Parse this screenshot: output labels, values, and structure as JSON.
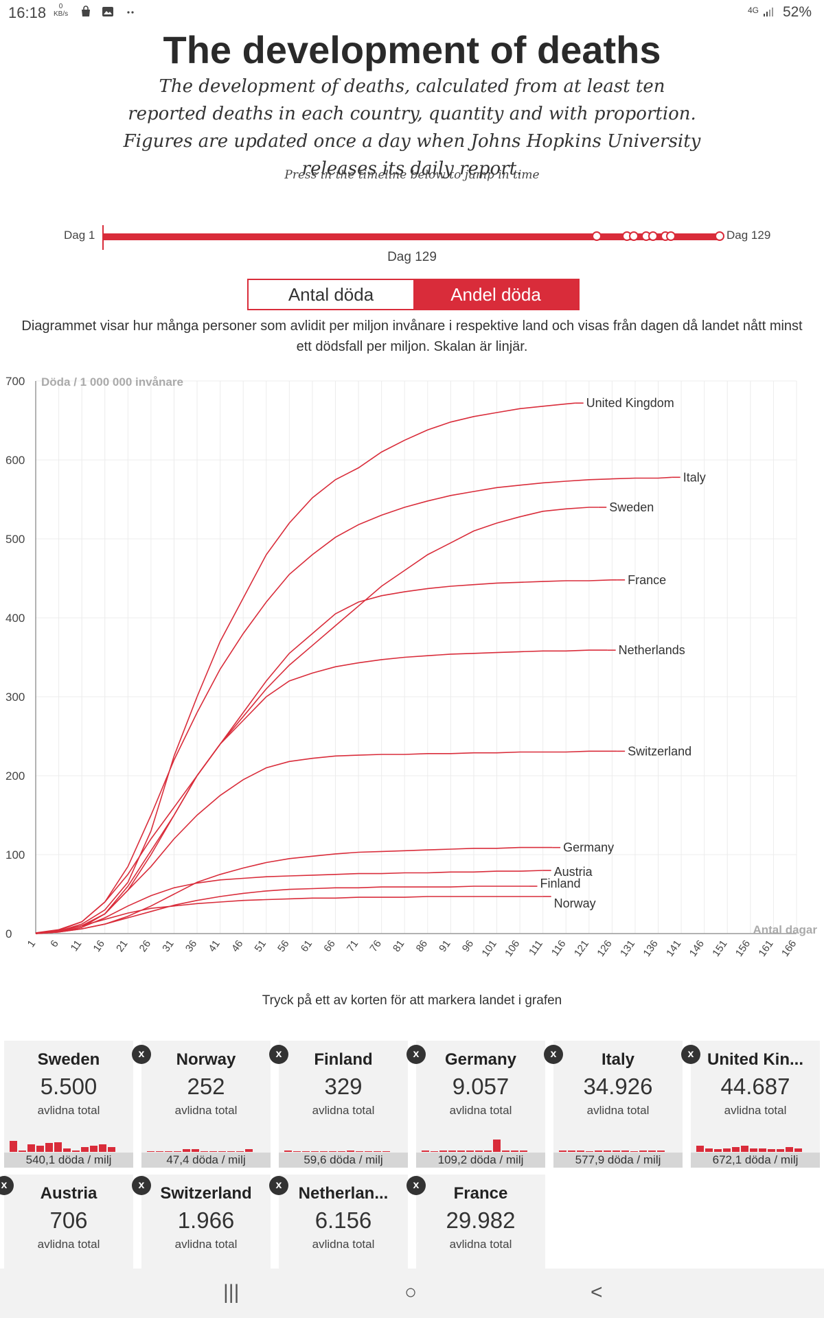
{
  "status_bar": {
    "time": "16:18",
    "kbs_value": "0",
    "kbs_unit": "KB/s",
    "signal": "4G",
    "battery": "52%"
  },
  "header": {
    "title": "The development of deaths",
    "subtitle": "The development of deaths, calculated from at least ten reported deaths in each country, quantity and with proportion. Figures are updated once a day when Johns Hopkins University releases its daily report.",
    "hint": "Press in the timeline below to jump in time"
  },
  "timeline": {
    "start_label": "Dag 1",
    "end_label": "Dag 129",
    "current_label": "Dag 129",
    "current_day": 129,
    "max_day": 129
  },
  "toggle": {
    "option_count": "Antal döda",
    "option_share": "Andel döda",
    "active": "Andel döda"
  },
  "description": "Diagrammet visar hur många personer som avlidit per miljon invånare i respektive land och visas från dagen då landet nått minst ett dödsfall per miljon. Skalan är linjär.",
  "chart_data": {
    "type": "line",
    "ylabel": "Döda / 1 000 000 invånare",
    "xlabel": "Antal dagar",
    "ylim": [
      0,
      700
    ],
    "xlim": [
      1,
      166
    ],
    "yticks": [
      0,
      100,
      200,
      300,
      400,
      500,
      600,
      700
    ],
    "xticks": [
      1,
      6,
      11,
      16,
      21,
      26,
      31,
      36,
      41,
      46,
      51,
      56,
      61,
      66,
      71,
      76,
      81,
      86,
      91,
      96,
      101,
      106,
      111,
      116,
      121,
      126,
      131,
      136,
      141,
      146,
      151,
      156,
      161,
      166
    ],
    "grid": true,
    "series": [
      {
        "name": "United Kingdom",
        "x": [
          1,
          6,
          11,
          16,
          21,
          26,
          31,
          36,
          41,
          46,
          51,
          56,
          61,
          66,
          71,
          76,
          81,
          86,
          91,
          96,
          101,
          106,
          111,
          116,
          118
        ],
        "y": [
          0,
          3,
          12,
          30,
          65,
          130,
          225,
          300,
          370,
          425,
          480,
          520,
          552,
          575,
          590,
          610,
          625,
          638,
          648,
          655,
          660,
          665,
          668,
          671,
          672
        ]
      },
      {
        "name": "Italy",
        "x": [
          1,
          6,
          11,
          16,
          21,
          26,
          31,
          36,
          41,
          46,
          51,
          56,
          61,
          66,
          71,
          76,
          81,
          86,
          91,
          96,
          101,
          106,
          111,
          116,
          121,
          126,
          131,
          136,
          139
        ],
        "y": [
          1,
          5,
          15,
          40,
          85,
          150,
          220,
          280,
          335,
          380,
          420,
          455,
          480,
          502,
          518,
          530,
          540,
          548,
          555,
          560,
          565,
          568,
          571,
          573,
          575,
          576,
          577,
          577,
          578
        ]
      },
      {
        "name": "Sweden",
        "x": [
          1,
          6,
          11,
          16,
          21,
          26,
          31,
          36,
          41,
          46,
          51,
          56,
          61,
          66,
          71,
          76,
          81,
          86,
          91,
          96,
          101,
          106,
          111,
          116,
          121,
          123
        ],
        "y": [
          0,
          4,
          15,
          40,
          75,
          120,
          160,
          200,
          240,
          275,
          310,
          340,
          365,
          390,
          415,
          440,
          460,
          480,
          495,
          510,
          520,
          528,
          535,
          538,
          540,
          540
        ]
      },
      {
        "name": "France",
        "x": [
          1,
          6,
          11,
          16,
          21,
          26,
          31,
          36,
          41,
          46,
          51,
          56,
          61,
          66,
          71,
          76,
          81,
          86,
          91,
          96,
          101,
          106,
          111,
          116,
          121,
          126,
          127
        ],
        "y": [
          0,
          3,
          10,
          25,
          55,
          100,
          150,
          200,
          240,
          280,
          320,
          355,
          380,
          405,
          420,
          428,
          433,
          437,
          440,
          442,
          444,
          445,
          446,
          447,
          447,
          448,
          448
        ]
      },
      {
        "name": "Netherlands",
        "x": [
          1,
          6,
          11,
          16,
          21,
          26,
          31,
          36,
          41,
          46,
          51,
          56,
          61,
          66,
          71,
          76,
          81,
          86,
          91,
          96,
          101,
          106,
          111,
          116,
          121,
          125
        ],
        "y": [
          0,
          2,
          8,
          25,
          60,
          105,
          150,
          200,
          240,
          270,
          300,
          320,
          330,
          338,
          343,
          347,
          350,
          352,
          354,
          355,
          356,
          357,
          358,
          358,
          359,
          359
        ]
      },
      {
        "name": "Switzerland",
        "x": [
          1,
          6,
          11,
          16,
          21,
          26,
          31,
          36,
          41,
          46,
          51,
          56,
          61,
          66,
          71,
          76,
          81,
          86,
          91,
          96,
          101,
          106,
          111,
          116,
          121,
          127
        ],
        "y": [
          0,
          3,
          10,
          25,
          55,
          85,
          120,
          150,
          175,
          195,
          210,
          218,
          222,
          225,
          226,
          227,
          227,
          228,
          228,
          229,
          229,
          230,
          230,
          230,
          231,
          231
        ]
      },
      {
        "name": "Germany",
        "x": [
          1,
          6,
          11,
          16,
          21,
          26,
          31,
          36,
          41,
          46,
          51,
          56,
          61,
          66,
          71,
          76,
          81,
          86,
          91,
          96,
          101,
          106,
          111,
          113
        ],
        "y": [
          0,
          2,
          6,
          12,
          22,
          35,
          50,
          65,
          75,
          83,
          90,
          95,
          98,
          101,
          103,
          104,
          105,
          106,
          107,
          108,
          108,
          109,
          109,
          109
        ]
      },
      {
        "name": "Austria",
        "x": [
          1,
          6,
          11,
          16,
          21,
          26,
          31,
          36,
          41,
          46,
          51,
          56,
          61,
          66,
          71,
          76,
          81,
          86,
          91,
          96,
          101,
          106,
          111
        ],
        "y": [
          0,
          2,
          8,
          20,
          35,
          48,
          58,
          64,
          68,
          70,
          72,
          73,
          74,
          75,
          76,
          76,
          77,
          77,
          78,
          78,
          79,
          79,
          80
        ]
      },
      {
        "name": "Finland",
        "x": [
          1,
          6,
          11,
          16,
          21,
          26,
          31,
          36,
          41,
          46,
          51,
          56,
          61,
          66,
          71,
          76,
          81,
          86,
          91,
          96,
          101,
          106,
          108
        ],
        "y": [
          0,
          2,
          6,
          12,
          20,
          28,
          36,
          42,
          47,
          51,
          54,
          56,
          57,
          58,
          58,
          59,
          59,
          59,
          59,
          60,
          60,
          60,
          60
        ]
      },
      {
        "name": "Norway",
        "x": [
          1,
          6,
          11,
          16,
          21,
          26,
          31,
          36,
          41,
          46,
          51,
          56,
          61,
          66,
          71,
          76,
          81,
          86,
          91,
          96,
          101,
          106,
          111
        ],
        "y": [
          0,
          3,
          10,
          18,
          26,
          32,
          35,
          38,
          40,
          42,
          43,
          44,
          45,
          45,
          46,
          46,
          46,
          47,
          47,
          47,
          47,
          47,
          47
        ]
      }
    ]
  },
  "card_hint": "Tryck på ett av korten för att markera landet i grafen",
  "cards": [
    {
      "name": "Sweden",
      "total": "5.500",
      "total_label": "avlidna total",
      "per_million": "540,1 döda / milj",
      "bars": [
        0.9,
        0.1,
        0.6,
        0.5,
        0.7,
        0.8,
        0.3,
        0.1,
        0.4,
        0.5,
        0.6,
        0.4
      ]
    },
    {
      "name": "Norway",
      "total": "252",
      "total_label": "avlidna total",
      "per_million": "47,4 döda / milj",
      "bars": [
        0,
        0,
        0,
        0,
        0.2,
        0.2,
        0,
        0,
        0,
        0,
        0,
        0.2
      ]
    },
    {
      "name": "Finland",
      "total": "329",
      "total_label": "avlidna total",
      "per_million": "59,6 döda / milj",
      "bars": [
        0.1,
        0,
        0,
        0,
        0,
        0,
        0,
        0.1,
        0,
        0,
        0,
        0
      ]
    },
    {
      "name": "Germany",
      "total": "9.057",
      "total_label": "avlidna total",
      "per_million": "109,2 döda / milj",
      "bars": [
        0.1,
        0,
        0.1,
        0.1,
        0.1,
        0.1,
        0.1,
        0.1,
        1.0,
        0.1,
        0.1,
        0.1
      ]
    },
    {
      "name": "Italy",
      "total": "34.926",
      "total_label": "avlidna total",
      "per_million": "577,9 döda / milj",
      "bars": [
        0.1,
        0.1,
        0.1,
        0,
        0.1,
        0.1,
        0.1,
        0.1,
        0,
        0.1,
        0.1,
        0.1
      ]
    },
    {
      "name": "United Kin...",
      "total": "44.687",
      "total_label": "avlidna total",
      "per_million": "672,1 döda / milj",
      "bars": [
        0.5,
        0.3,
        0.2,
        0.3,
        0.4,
        0.5,
        0.3,
        0.3,
        0.2,
        0.2,
        0.4,
        0.3
      ]
    },
    {
      "name": "Austria",
      "total": "706",
      "total_label": "avlidna total",
      "per_million": "",
      "bars": []
    },
    {
      "name": "Switzerland",
      "total": "1.966",
      "total_label": "avlidna total",
      "per_million": "",
      "bars": []
    },
    {
      "name": "Netherlan...",
      "total": "6.156",
      "total_label": "avlidna total",
      "per_million": "",
      "bars": []
    },
    {
      "name": "France",
      "total": "29.982",
      "total_label": "avlidna total",
      "per_million": "",
      "bars": []
    }
  ],
  "close_glyph": "x",
  "nav": {
    "recent": "|||",
    "home": "○",
    "back": "<"
  },
  "colors": {
    "accent": "#d92c3a",
    "card_bg": "#f2f2f2",
    "card_foot": "#d6d6d6"
  }
}
